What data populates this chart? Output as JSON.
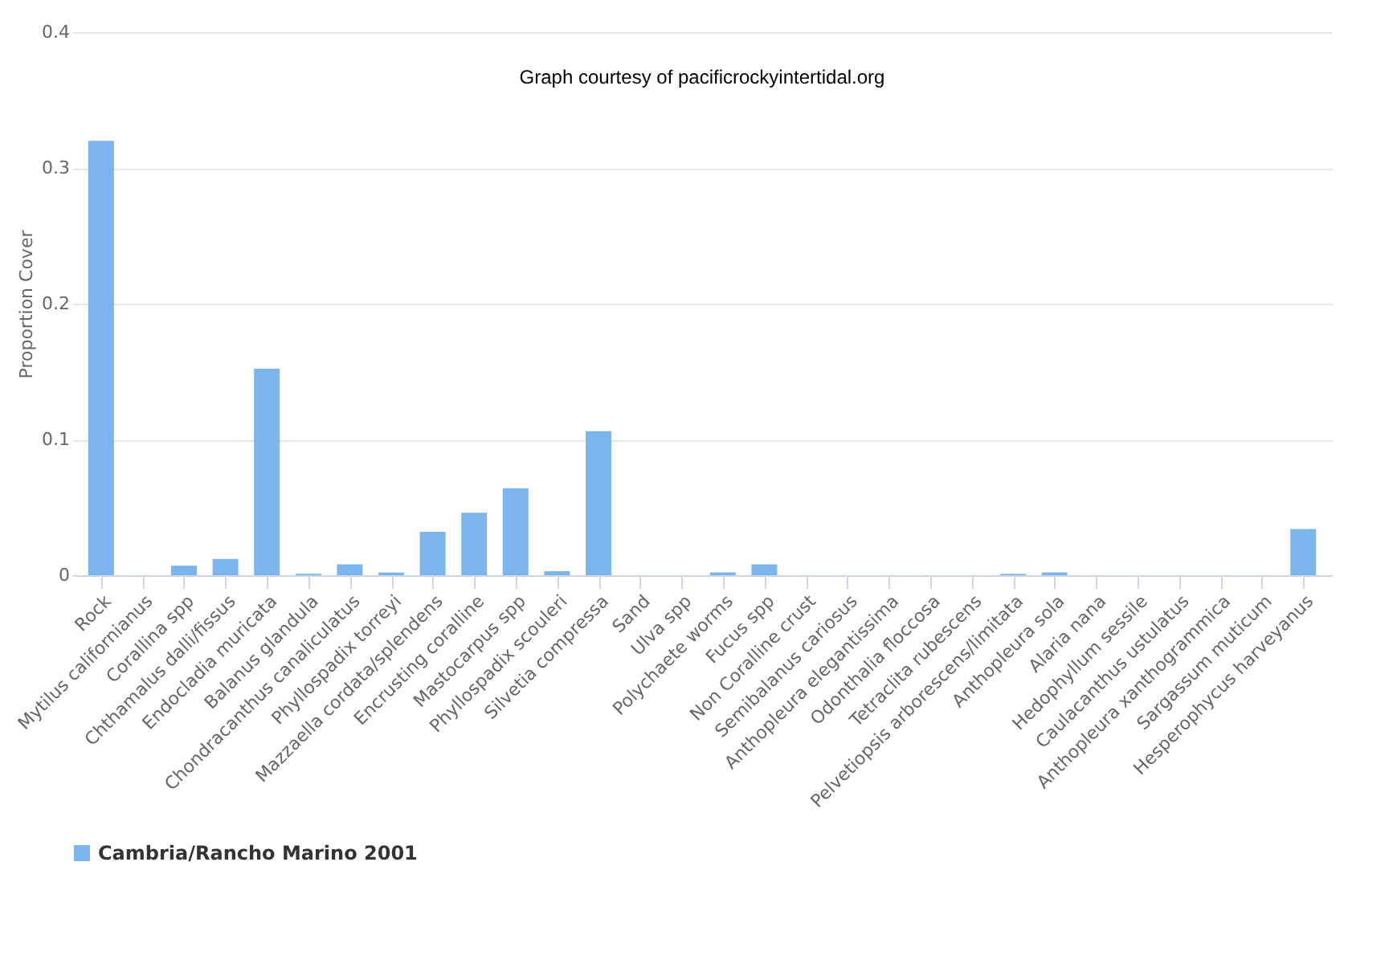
{
  "chart_data": {
    "type": "bar",
    "ylabel": "Proportion Cover",
    "categories": [
      "Rock",
      "Mytilus californianus",
      "Corallina spp",
      "Chthamalus dalli/fissus",
      "Endocladia muricata",
      "Balanus glandula",
      "Chondracanthus canaliculatus",
      "Phyllospadix torreyi",
      "Mazzaella cordata/splendens",
      "Encrusting coralline",
      "Mastocarpus spp",
      "Phyllospadix scouleri",
      "Silvetia compressa",
      "Sand",
      "Ulva spp",
      "Polychaete worms",
      "Fucus spp",
      "Non Coralline crust",
      "Semibalanus cariosus",
      "Anthopleura elegantissima",
      "Odonthalia floccosa",
      "Tetraclita rubescens",
      "Pelvetiopsis arborescens/limitata",
      "Anthopleura sola",
      "Alaria nana",
      "Hedophyllum sessile",
      "Caulacanthus ustulatus",
      "Anthopleura xanthogrammica",
      "Sargassum muticum",
      "Hesperophycus harveyanus"
    ],
    "series": [
      {
        "name": "Cambria/Rancho Marino 2001",
        "color": "#7cb5ec",
        "values": [
          0.32,
          0,
          0.007,
          0.012,
          0.152,
          0.001,
          0.008,
          0.002,
          0.032,
          0.046,
          0.064,
          0.003,
          0.106,
          0,
          0,
          0.002,
          0.008,
          0,
          0,
          0,
          0,
          0,
          0.001,
          0.002,
          0,
          0,
          0,
          0,
          0,
          0.034
        ]
      }
    ],
    "ylim": [
      0,
      0.4
    ],
    "yticks": [
      0,
      0.1,
      0.2,
      0.3,
      0.4
    ],
    "grid": "y",
    "legend": "bottom",
    "annotations": [
      "Graph courtesy of pacificrockyintertidal.org"
    ]
  }
}
